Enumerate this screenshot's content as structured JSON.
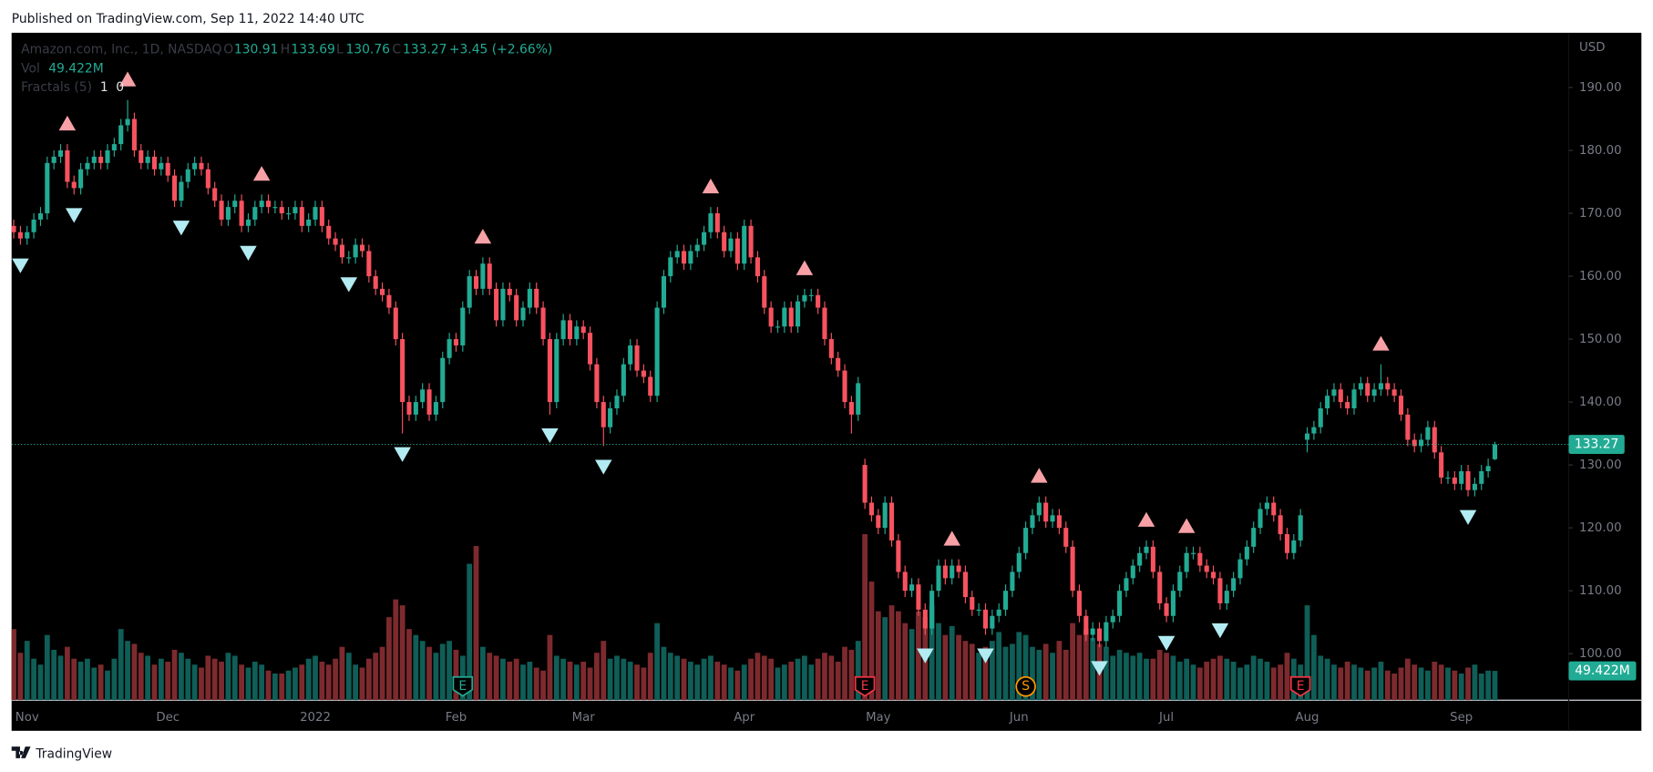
{
  "header": {
    "published": "Published on TradingView.com, Sep 11, 2022 14:40 UTC"
  },
  "footer": {
    "brand": "TradingView"
  },
  "chart_data": {
    "type": "candlestick",
    "legend": {
      "symbol": "Amazon.com, Inc., 1D, NASDAQ",
      "ohlc_keys": [
        "O",
        "H",
        "L",
        "C"
      ],
      "change": "+3.45 (+2.66%)",
      "volume_name": "Vol",
      "volume_label": "49.422M",
      "indicator": "Fractals (5)",
      "indicator_values": [
        1,
        0
      ]
    },
    "y_unit": "USD",
    "ylim": [
      92.6,
      198.7
    ],
    "yticks": [
      {
        "value": 100,
        "label": "100.00"
      },
      {
        "value": 110,
        "label": "110.00"
      },
      {
        "value": 120,
        "label": "120.00"
      },
      {
        "value": 130,
        "label": "130.00"
      },
      {
        "value": 140,
        "label": "140.00"
      },
      {
        "value": 150,
        "label": "150.00"
      },
      {
        "value": 160,
        "label": "160.00"
      },
      {
        "value": 170,
        "label": "170.00"
      },
      {
        "value": 180,
        "label": "180.00"
      },
      {
        "value": 190,
        "label": "190.00"
      }
    ],
    "y2lim": [
      0,
      320
    ],
    "colors": {
      "up": "#22ab94",
      "down": "#f7525f",
      "volume_up": "#0f5e57",
      "volume_down": "#7d2a2e",
      "fractal_up": "#f7a1a6",
      "fractal_down": "#b2ebf2",
      "price_line": "#22ab94"
    },
    "categories": [
      null,
      null,
      "Nov",
      null,
      null,
      null,
      null,
      null,
      null,
      null,
      null,
      null,
      null,
      null,
      null,
      null,
      null,
      null,
      null,
      null,
      null,
      null,
      null,
      "Dec",
      null,
      null,
      null,
      null,
      null,
      null,
      null,
      null,
      null,
      null,
      null,
      null,
      null,
      null,
      null,
      null,
      null,
      null,
      null,
      null,
      null,
      "2022",
      null,
      null,
      null,
      null,
      null,
      null,
      null,
      null,
      null,
      null,
      null,
      null,
      null,
      null,
      null,
      null,
      null,
      null,
      null,
      null,
      "Feb",
      null,
      null,
      null,
      null,
      null,
      null,
      null,
      null,
      null,
      null,
      null,
      null,
      null,
      null,
      null,
      null,
      null,
      null,
      "Mar",
      null,
      null,
      null,
      null,
      null,
      null,
      null,
      null,
      null,
      null,
      null,
      null,
      null,
      null,
      null,
      null,
      null,
      null,
      null,
      null,
      null,
      null,
      null,
      "Apr",
      null,
      null,
      null,
      null,
      null,
      null,
      null,
      null,
      null,
      null,
      null,
      null,
      null,
      null,
      null,
      null,
      null,
      null,
      null,
      "May",
      null,
      null,
      null,
      null,
      null,
      null,
      null,
      null,
      null,
      null,
      null,
      null,
      null,
      null,
      null,
      null,
      null,
      null,
      null,
      null,
      "Jun",
      null,
      null,
      null,
      null,
      null,
      null,
      null,
      null,
      null,
      null,
      null,
      null,
      null,
      null,
      null,
      null,
      null,
      null,
      null,
      null,
      null,
      "Jul",
      null,
      null,
      null,
      null,
      null,
      null,
      null,
      null,
      null,
      null,
      null,
      null,
      null,
      null,
      null,
      null,
      null,
      null,
      null,
      null,
      "Aug",
      null,
      null,
      null,
      null,
      null,
      null,
      null,
      null,
      null,
      null,
      null,
      null,
      null,
      null,
      null,
      null,
      null,
      null,
      null,
      null,
      null,
      null,
      "Sep",
      null,
      null,
      null,
      null,
      null
    ],
    "open": [
      168,
      167,
      166,
      167,
      169,
      170,
      178,
      179,
      180,
      175,
      174,
      177,
      178,
      179,
      178,
      180,
      181,
      184,
      185,
      180,
      178,
      179,
      177,
      178,
      176,
      172,
      175,
      177,
      178,
      177,
      174,
      172,
      169,
      171,
      172,
      168,
      169,
      171,
      172,
      171,
      171,
      170,
      170,
      171,
      168,
      169,
      171,
      168,
      166,
      165,
      163,
      163,
      165,
      164,
      160,
      158,
      157,
      155,
      150,
      140,
      138,
      140,
      142,
      138,
      140,
      147,
      150,
      149,
      155,
      160,
      158,
      162,
      158,
      153,
      158,
      157,
      153,
      155,
      158,
      155,
      150,
      140,
      150,
      153,
      150,
      152,
      151,
      146,
      140,
      136,
      139,
      141,
      146,
      149,
      145,
      144,
      141,
      155,
      160,
      163,
      164,
      162,
      164,
      165,
      167,
      170,
      167,
      164,
      166,
      162,
      168,
      163,
      160,
      155,
      152,
      152,
      155,
      152,
      156,
      157,
      157,
      155,
      150,
      147,
      145,
      140,
      138,
      130,
      124,
      122,
      120,
      124,
      118,
      113,
      110,
      111,
      107,
      104,
      110,
      114,
      112,
      114,
      113,
      109,
      107,
      107,
      104,
      106,
      107,
      110,
      113,
      116,
      120,
      122,
      124,
      121,
      122,
      120,
      117,
      110,
      106,
      103,
      104,
      102,
      105,
      106,
      110,
      112,
      114,
      116,
      117,
      113,
      108,
      106,
      110,
      113,
      116,
      116,
      114,
      113,
      112,
      108,
      110,
      112,
      115,
      117,
      120,
      123,
      124,
      122,
      119,
      116,
      118,
      134,
      135,
      136,
      139,
      141,
      142,
      140,
      139,
      142,
      143,
      141,
      142,
      143,
      142,
      141,
      138,
      134,
      133,
      134,
      136,
      132,
      128,
      128,
      127,
      129,
      126,
      127,
      129,
      130.91
    ],
    "high": [
      169,
      168,
      168,
      170,
      171,
      179,
      180,
      181,
      181,
      176,
      178,
      179,
      180,
      180,
      181,
      182,
      185,
      188,
      186,
      181,
      180,
      180,
      179,
      179,
      177,
      176,
      178,
      179,
      179,
      178,
      175,
      173,
      172,
      173,
      173,
      170,
      172,
      173,
      173,
      172,
      172,
      171,
      172,
      172,
      170,
      172,
      172,
      169,
      167,
      166,
      164,
      166,
      166,
      165,
      161,
      159,
      158,
      156,
      151,
      141,
      141,
      143,
      143,
      141,
      148,
      151,
      151,
      156,
      161,
      161,
      163,
      163,
      159,
      159,
      159,
      158,
      156,
      159,
      159,
      156,
      151,
      151,
      154,
      154,
      153,
      153,
      152,
      147,
      141,
      140,
      142,
      147,
      150,
      150,
      146,
      145,
      156,
      161,
      164,
      165,
      165,
      165,
      166,
      168,
      171,
      171,
      168,
      167,
      167,
      169,
      169,
      164,
      161,
      156,
      153,
      156,
      156,
      157,
      158,
      158,
      158,
      156,
      151,
      148,
      146,
      141,
      144,
      131,
      125,
      123,
      125,
      125,
      119,
      114,
      112,
      112,
      108,
      111,
      115,
      115,
      115,
      115,
      114,
      110,
      108,
      108,
      107,
      108,
      111,
      114,
      117,
      121,
      123,
      125,
      125,
      123,
      123,
      121,
      118,
      111,
      107,
      105,
      105,
      106,
      107,
      111,
      113,
      115,
      117,
      118,
      118,
      114,
      109,
      111,
      114,
      117,
      117,
      117,
      115,
      114,
      113,
      111,
      113,
      116,
      118,
      121,
      124,
      125,
      125,
      123,
      120,
      119,
      123,
      136,
      137,
      140,
      142,
      143,
      143,
      141,
      143,
      144,
      144,
      143,
      146,
      144,
      143,
      142,
      139,
      135,
      135,
      137,
      137,
      133,
      129,
      129,
      130,
      130,
      128,
      130,
      131,
      133.69
    ],
    "low": [
      166,
      165,
      165,
      166,
      168,
      169,
      177,
      178,
      174,
      173,
      173,
      176,
      177,
      177,
      177,
      179,
      180,
      183,
      179,
      177,
      177,
      176,
      176,
      175,
      171,
      171,
      174,
      176,
      176,
      173,
      171,
      168,
      168,
      170,
      167,
      167,
      168,
      170,
      170,
      170,
      169,
      169,
      169,
      167,
      167,
      168,
      167,
      165,
      164,
      162,
      162,
      162,
      163,
      159,
      157,
      156,
      154,
      149,
      135,
      137,
      137,
      139,
      137,
      137,
      139,
      146,
      148,
      148,
      154,
      157,
      157,
      157,
      152,
      152,
      156,
      152,
      152,
      154,
      154,
      149,
      138,
      139,
      149,
      149,
      149,
      150,
      145,
      139,
      133,
      135,
      138,
      140,
      145,
      144,
      143,
      140,
      140,
      154,
      159,
      162,
      161,
      161,
      163,
      164,
      166,
      166,
      163,
      163,
      161,
      161,
      162,
      159,
      154,
      151,
      151,
      151,
      151,
      151,
      155,
      156,
      154,
      149,
      146,
      144,
      139,
      135,
      137,
      123,
      121,
      119,
      119,
      117,
      112,
      109,
      109,
      106,
      103,
      103,
      109,
      111,
      111,
      112,
      108,
      106,
      106,
      103,
      103,
      105,
      106,
      109,
      112,
      115,
      119,
      121,
      120,
      120,
      119,
      116,
      109,
      105,
      102,
      102,
      101,
      101,
      104,
      105,
      109,
      111,
      113,
      115,
      112,
      107,
      105,
      105,
      109,
      112,
      115,
      113,
      112,
      111,
      107,
      107,
      109,
      111,
      114,
      116,
      119,
      122,
      121,
      118,
      115,
      115,
      117,
      132,
      134,
      135,
      138,
      140,
      139,
      138,
      138,
      141,
      140,
      140,
      141,
      141,
      140,
      137,
      133,
      132,
      132,
      133,
      131,
      127,
      127,
      126,
      126,
      125,
      125,
      126,
      128,
      130.76
    ],
    "close": [
      167,
      166,
      167,
      169,
      170,
      178,
      179,
      180,
      175,
      174,
      177,
      178,
      179,
      178,
      180,
      181,
      184,
      185,
      180,
      178,
      179,
      177,
      178,
      176,
      172,
      175,
      177,
      178,
      177,
      174,
      172,
      169,
      171,
      172,
      168,
      169,
      171,
      172,
      171,
      171,
      170,
      170,
      171,
      168,
      169,
      171,
      168,
      166,
      165,
      163,
      163,
      165,
      164,
      160,
      158,
      157,
      155,
      150,
      140,
      138,
      140,
      142,
      138,
      140,
      147,
      150,
      149,
      155,
      160,
      158,
      162,
      158,
      153,
      158,
      157,
      153,
      155,
      158,
      155,
      150,
      140,
      150,
      153,
      150,
      152,
      151,
      146,
      140,
      136,
      139,
      141,
      146,
      149,
      145,
      144,
      141,
      155,
      160,
      163,
      164,
      162,
      164,
      165,
      167,
      170,
      167,
      164,
      166,
      162,
      168,
      163,
      160,
      155,
      152,
      152,
      155,
      152,
      156,
      157,
      157,
      155,
      150,
      147,
      145,
      140,
      138,
      143,
      124,
      122,
      120,
      124,
      118,
      113,
      110,
      111,
      107,
      104,
      110,
      114,
      112,
      114,
      113,
      109,
      107,
      107,
      104,
      106,
      107,
      110,
      113,
      116,
      120,
      122,
      124,
      121,
      122,
      120,
      117,
      110,
      106,
      103,
      104,
      102,
      105,
      106,
      110,
      112,
      114,
      116,
      117,
      113,
      108,
      106,
      110,
      113,
      116,
      116,
      114,
      113,
      112,
      108,
      110,
      112,
      115,
      117,
      120,
      123,
      124,
      122,
      119,
      116,
      118,
      122,
      135,
      136,
      139,
      141,
      142,
      140,
      139,
      142,
      143,
      141,
      142,
      143,
      142,
      141,
      138,
      134,
      133,
      134,
      136,
      132,
      128,
      128,
      127,
      129,
      126,
      127,
      129,
      129.82,
      133.27
    ],
    "volume": [
      120,
      80,
      100,
      70,
      60,
      110,
      85,
      75,
      90,
      70,
      65,
      70,
      55,
      60,
      50,
      70,
      120,
      100,
      95,
      80,
      75,
      60,
      70,
      65,
      85,
      80,
      70,
      60,
      55,
      75,
      70,
      65,
      80,
      75,
      60,
      55,
      65,
      60,
      50,
      45,
      45,
      50,
      55,
      60,
      70,
      75,
      65,
      60,
      70,
      90,
      80,
      60,
      55,
      70,
      80,
      90,
      140,
      170,
      160,
      120,
      110,
      100,
      90,
      80,
      95,
      100,
      85,
      75,
      230,
      260,
      90,
      80,
      75,
      70,
      65,
      70,
      60,
      65,
      55,
      50,
      110,
      75,
      70,
      65,
      60,
      65,
      55,
      80,
      100,
      70,
      75,
      70,
      65,
      60,
      55,
      80,
      130,
      90,
      80,
      75,
      70,
      65,
      60,
      70,
      75,
      65,
      60,
      55,
      50,
      60,
      70,
      80,
      75,
      70,
      55,
      60,
      65,
      70,
      75,
      60,
      70,
      80,
      75,
      65,
      90,
      85,
      100,
      280,
      200,
      150,
      140,
      160,
      150,
      130,
      120,
      150,
      140,
      160,
      130,
      110,
      125,
      110,
      100,
      95,
      80,
      90,
      100,
      115,
      90,
      95,
      115,
      110,
      90,
      85,
      95,
      80,
      100,
      85,
      130,
      110,
      120,
      105,
      95,
      90,
      75,
      85,
      80,
      75,
      80,
      70,
      70,
      85,
      80,
      75,
      65,
      70,
      60,
      55,
      65,
      70,
      75,
      70,
      65,
      55,
      60,
      75,
      70,
      65,
      55,
      60,
      80,
      70,
      60,
      160,
      110,
      75,
      70,
      60,
      55,
      65,
      60,
      55,
      50,
      55,
      65,
      50,
      45,
      55,
      70,
      60,
      55,
      50,
      65,
      60,
      55,
      50,
      45,
      55,
      60,
      45,
      50,
      49.422
    ],
    "fractals": {
      "up": [
        8,
        17,
        37,
        70,
        104,
        118,
        140,
        153,
        169,
        175,
        204
      ],
      "down": [
        1,
        9,
        25,
        35,
        50,
        58,
        80,
        88,
        136,
        145,
        162,
        172,
        180,
        217
      ]
    },
    "events": [
      {
        "label": "E",
        "index": 67,
        "color": "#22ab94"
      },
      {
        "label": "E",
        "index": 127,
        "color": "#f23645"
      },
      {
        "label": "S",
        "index": 151,
        "color": "#ff9800"
      },
      {
        "label": "E",
        "index": 192,
        "color": "#f23645"
      }
    ]
  }
}
